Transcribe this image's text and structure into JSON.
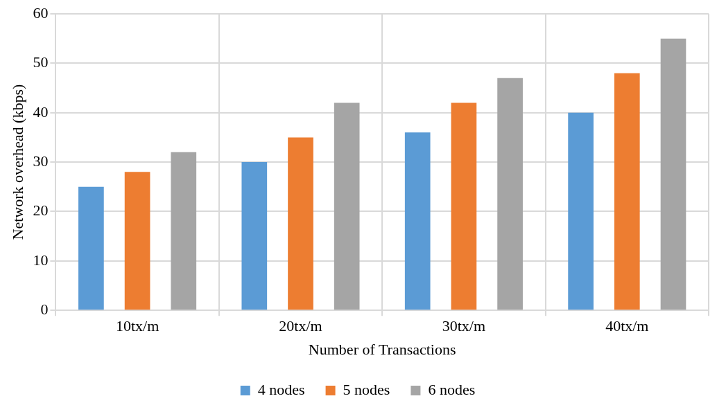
{
  "chart_data": {
    "type": "bar",
    "xlabel": "Number of Transactions",
    "ylabel": "Network overhead (kbps)",
    "categories": [
      "10tx/m",
      "20tx/m",
      "30tx/m",
      "40tx/m"
    ],
    "series": [
      {
        "name": "4 nodes",
        "color": "#5b9bd5",
        "values": [
          25,
          30,
          36,
          40
        ]
      },
      {
        "name": "5 nodes",
        "color": "#ed7d31",
        "values": [
          28,
          35,
          42,
          48
        ]
      },
      {
        "name": "6 nodes",
        "color": "#a5a5a5",
        "values": [
          32,
          42,
          47,
          55
        ]
      }
    ],
    "ylim": [
      0,
      60
    ],
    "yticks": [
      0,
      10,
      20,
      30,
      40,
      50,
      60
    ],
    "grid": true,
    "legend": "bottom"
  }
}
